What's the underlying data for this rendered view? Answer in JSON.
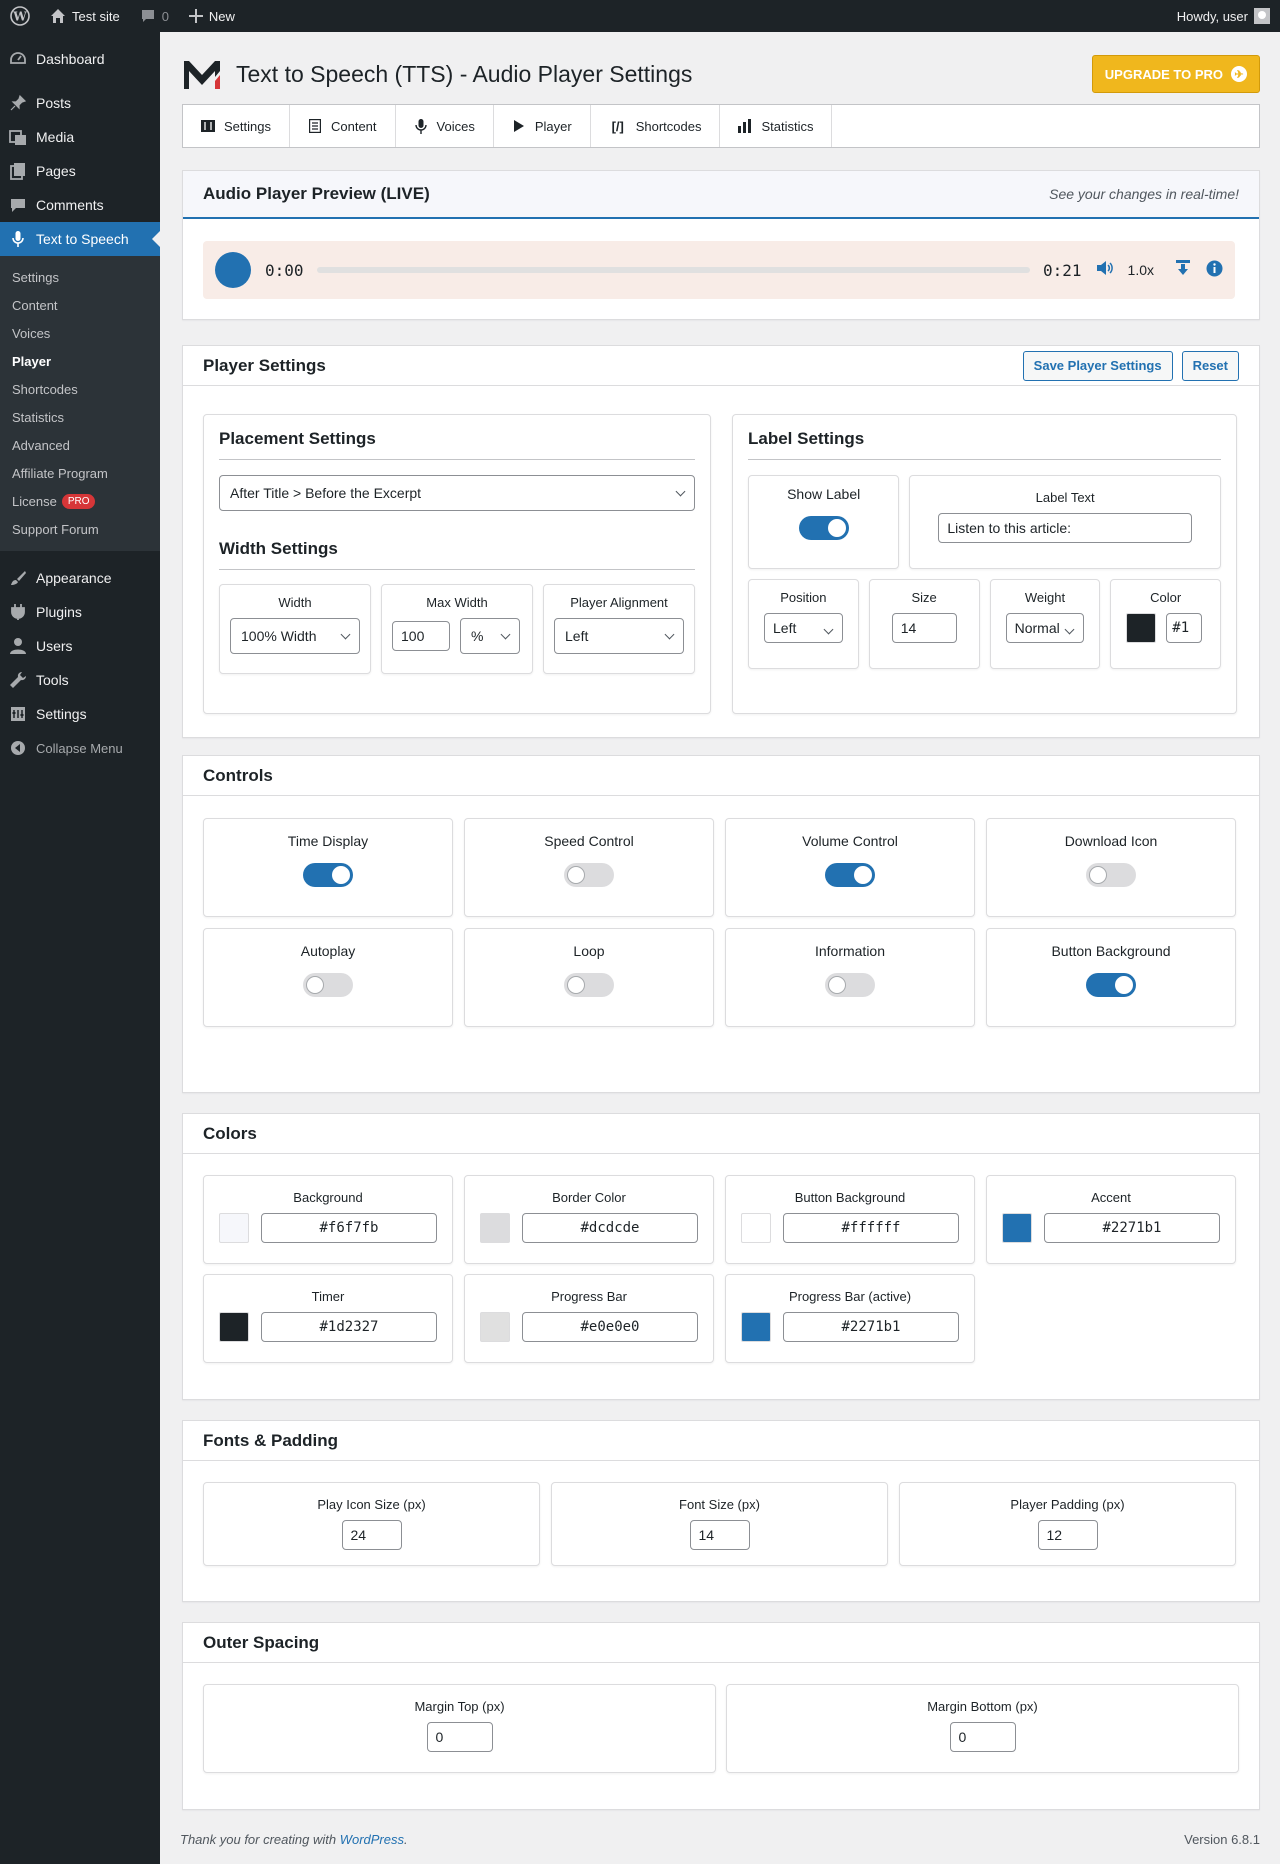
{
  "adminbar": {
    "site_name": "Test site",
    "comments_count": "0",
    "new_label": "New",
    "howdy": "Howdy, user"
  },
  "sidebar": {
    "top_items": [
      {
        "label": "Dashboard",
        "icon": "dashboard-icon"
      }
    ],
    "items": [
      {
        "label": "Posts",
        "icon": "pin-icon"
      },
      {
        "label": "Media",
        "icon": "media-icon"
      },
      {
        "label": "Pages",
        "icon": "pages-icon"
      },
      {
        "label": "Comments",
        "icon": "comments-icon"
      },
      {
        "label": "Text to Speech",
        "icon": "microphone-icon"
      }
    ],
    "submenu": [
      "Settings",
      "Content",
      "Voices",
      "Player",
      "Shortcodes",
      "Statistics",
      "Advanced",
      "Affiliate Program",
      "License",
      "Support Forum"
    ],
    "license_badge": "PRO",
    "lower_items": [
      {
        "label": "Appearance",
        "icon": "brush-icon"
      },
      {
        "label": "Plugins",
        "icon": "plugin-icon"
      },
      {
        "label": "Users",
        "icon": "users-icon"
      },
      {
        "label": "Tools",
        "icon": "wrench-icon"
      },
      {
        "label": "Settings",
        "icon": "settings-icon"
      }
    ],
    "collapse_label": "Collapse Menu"
  },
  "header": {
    "title": "Text to Speech (TTS) - Audio Player Settings",
    "upgrade_label": "UPGRADE TO PRO"
  },
  "tabs": [
    {
      "label": "Settings",
      "icon": "settings-icon"
    },
    {
      "label": "Content",
      "icon": "document-icon"
    },
    {
      "label": "Voices",
      "icon": "microphone-icon"
    },
    {
      "label": "Player",
      "icon": "play-icon"
    },
    {
      "label": "Shortcodes",
      "icon": "shortcode-icon"
    },
    {
      "label": "Statistics",
      "icon": "bar-chart-icon"
    }
  ],
  "preview": {
    "title": "Audio Player Preview (LIVE)",
    "note": "See your changes in real-time!",
    "current_time": "0:00",
    "duration": "0:21",
    "speed": "1.0x",
    "progress": 0
  },
  "player_settings": {
    "title": "Player Settings",
    "save_label": "Save Player Settings",
    "reset_label": "Reset",
    "placement": {
      "title": "Placement Settings",
      "value": "After Title > Before the Excerpt"
    },
    "width": {
      "title": "Width Settings",
      "width_label": "Width",
      "width_value": "100% Width",
      "max_width_label": "Max Width",
      "max_width_value": "100",
      "max_width_unit": "%",
      "alignment_label": "Player Alignment",
      "alignment_value": "Left"
    },
    "label": {
      "title": "Label Settings",
      "show_label": "Show Label",
      "show_label_on": true,
      "text_label": "Label Text",
      "text_value": "Listen to this article:",
      "position_label": "Position",
      "position_value": "Left",
      "size_label": "Size",
      "size_value": "14",
      "weight_label": "Weight",
      "weight_value": "Normal",
      "color_label": "Color",
      "color_value": "#1",
      "color_swatch": "#1d2327"
    }
  },
  "controls": {
    "title": "Controls",
    "items": [
      {
        "label": "Time Display",
        "on": true
      },
      {
        "label": "Speed Control",
        "on": false
      },
      {
        "label": "Volume Control",
        "on": true
      },
      {
        "label": "Download Icon",
        "on": false
      },
      {
        "label": "Autoplay",
        "on": false
      },
      {
        "label": "Loop",
        "on": false
      },
      {
        "label": "Information",
        "on": false
      },
      {
        "label": "Button Background",
        "on": true
      }
    ]
  },
  "colors": {
    "title": "Colors",
    "items": [
      {
        "label": "Background",
        "value": "#f6f7fb"
      },
      {
        "label": "Border Color",
        "value": "#dcdcde"
      },
      {
        "label": "Button Background",
        "value": "#ffffff"
      },
      {
        "label": "Accent",
        "value": "#2271b1"
      },
      {
        "label": "Timer",
        "value": "#1d2327"
      },
      {
        "label": "Progress Bar",
        "value": "#e0e0e0"
      },
      {
        "label": "Progress Bar (active)",
        "value": "#2271b1"
      }
    ]
  },
  "fonts": {
    "title": "Fonts & Padding",
    "items": [
      {
        "label": "Play Icon Size (px)",
        "value": "24"
      },
      {
        "label": "Font Size (px)",
        "value": "14"
      },
      {
        "label": "Player Padding (px)",
        "value": "12"
      }
    ]
  },
  "spacing": {
    "title": "Outer Spacing",
    "items": [
      {
        "label": "Margin Top (px)",
        "value": "0"
      },
      {
        "label": "Margin Bottom (px)",
        "value": "0"
      }
    ]
  },
  "footer": {
    "thanks_prefix": "Thank you for creating with ",
    "thanks_link": "WordPress",
    "thanks_suffix": ".",
    "version": "Version 6.8.1"
  }
}
